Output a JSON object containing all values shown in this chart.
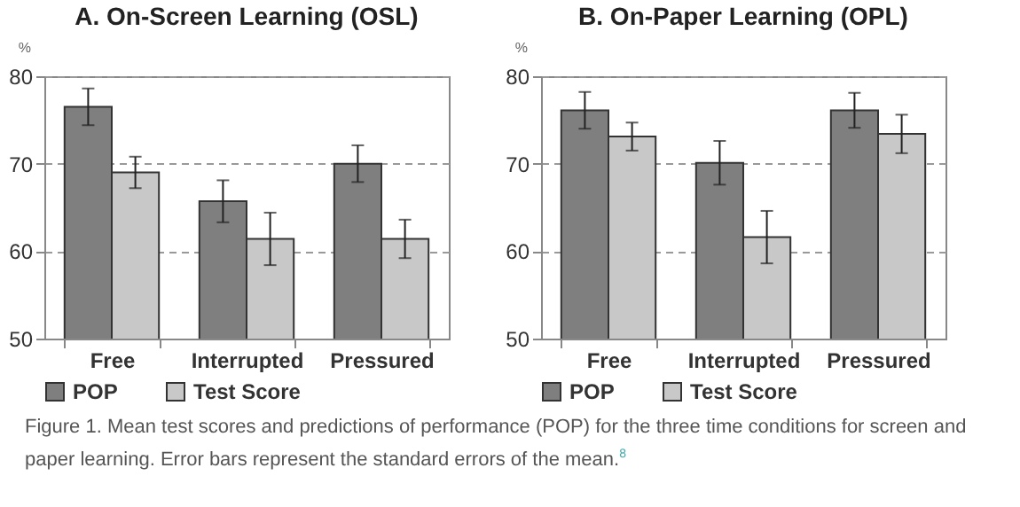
{
  "chart_data": [
    {
      "type": "bar",
      "title": "A. On-Screen Learning (OSL)",
      "ylabel": "%",
      "categories": [
        "Free",
        "Interrupted",
        "Pressured"
      ],
      "series": [
        {
          "name": "POP",
          "color": "#7f7f7f",
          "values": [
            76.5,
            65.7,
            70.0
          ],
          "errors": [
            2.1,
            2.4,
            2.1
          ]
        },
        {
          "name": "Test Score",
          "color": "#c8c8c8",
          "values": [
            69.0,
            61.4,
            61.4
          ],
          "errors": [
            1.8,
            3.0,
            2.2
          ]
        }
      ],
      "ylim": [
        50,
        80
      ],
      "yticks": [
        50,
        60,
        70,
        80
      ],
      "grid": "y",
      "legend": "bottom",
      "annotations": [
        "Figure 1. Mean test scores and predictions of performance (POP) for the three time conditions for screen and paper learning. Error bars represent the standard errors of the mean.$^{8}$"
      ]
    },
    {
      "type": "bar",
      "title": "B. On-Paper Learning (OPL)",
      "ylabel": "%",
      "categories": [
        "Free",
        "Interrupted",
        "Pressured"
      ],
      "series": [
        {
          "name": "POP",
          "color": "#7f7f7f",
          "values": [
            76.1,
            70.1,
            76.1
          ],
          "errors": [
            2.1,
            2.5,
            2.0
          ]
        },
        {
          "name": "Test Score",
          "color": "#c8c8c8",
          "values": [
            73.1,
            61.6,
            73.4
          ],
          "errors": [
            1.6,
            3.0,
            2.2
          ]
        }
      ],
      "ylim": [
        50,
        80
      ],
      "yticks": [
        50,
        60,
        70,
        80
      ],
      "grid": "y",
      "legend": "bottom"
    }
  ]
}
